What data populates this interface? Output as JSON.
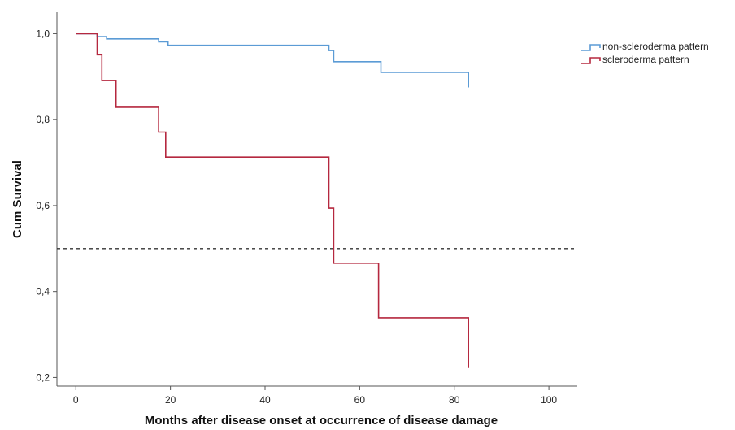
{
  "chart_data": {
    "type": "line",
    "subtype": "kaplan-meier-step",
    "xlabel": "Months after disease onset at occurrence of disease damage",
    "ylabel": "Cum Survival",
    "xlim": [
      -4,
      106
    ],
    "ylim": [
      0.18,
      1.05
    ],
    "x_ticks": [
      0,
      20,
      40,
      60,
      80,
      100
    ],
    "x_tick_labels": [
      "0",
      "20",
      "40",
      "60",
      "80",
      "100"
    ],
    "y_ticks": [
      0.2,
      0.4,
      0.6,
      0.8,
      1.0
    ],
    "y_tick_labels": [
      "0,2",
      "0,4",
      "0,6",
      "0,8",
      "1,0"
    ],
    "grid": false,
    "legend_position": "top-right",
    "reference_line": {
      "y": 0.5,
      "style": "dashed",
      "color": "#333333"
    },
    "series": [
      {
        "name": "non-scleroderma pattern",
        "color": "#5b9bd5",
        "points": [
          [
            0,
            1.0
          ],
          [
            4.5,
            1.0
          ],
          [
            4.5,
            0.993
          ],
          [
            6.5,
            0.993
          ],
          [
            6.5,
            0.988
          ],
          [
            17.5,
            0.988
          ],
          [
            17.5,
            0.981
          ],
          [
            19.5,
            0.981
          ],
          [
            19.5,
            0.973
          ],
          [
            53.5,
            0.973
          ],
          [
            53.5,
            0.961
          ],
          [
            54.5,
            0.961
          ],
          [
            54.5,
            0.935
          ],
          [
            64.5,
            0.935
          ],
          [
            64.5,
            0.91
          ],
          [
            83,
            0.91
          ],
          [
            83,
            0.875
          ]
        ]
      },
      {
        "name": "scleroderma pattern",
        "color": "#b5283f",
        "points": [
          [
            0,
            1.0
          ],
          [
            4.5,
            1.0
          ],
          [
            4.5,
            0.951
          ],
          [
            5.5,
            0.951
          ],
          [
            5.5,
            0.891
          ],
          [
            8.5,
            0.891
          ],
          [
            8.5,
            0.829
          ],
          [
            17.5,
            0.829
          ],
          [
            17.5,
            0.771
          ],
          [
            19,
            0.771
          ],
          [
            19,
            0.713
          ],
          [
            53.5,
            0.713
          ],
          [
            53.5,
            0.594
          ],
          [
            54.5,
            0.594
          ],
          [
            54.5,
            0.466
          ],
          [
            64,
            0.466
          ],
          [
            64,
            0.339
          ],
          [
            83,
            0.339
          ],
          [
            83,
            0.222
          ]
        ]
      }
    ]
  }
}
